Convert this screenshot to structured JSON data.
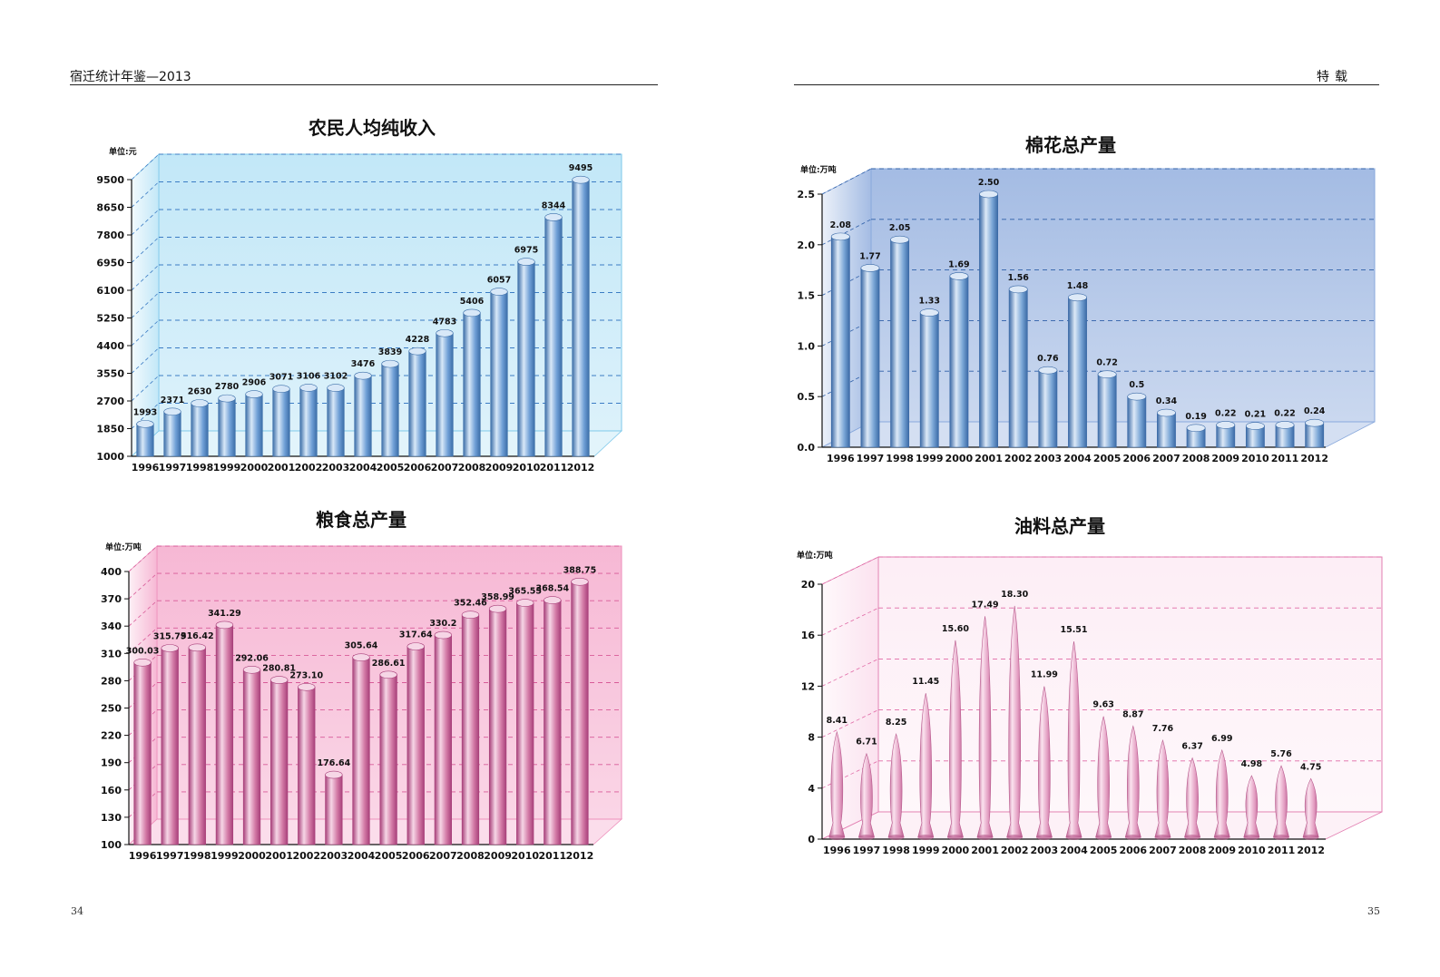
{
  "header": {
    "left_title": "宿迁统计年鉴—2013",
    "right_title": "特载"
  },
  "page_numbers": {
    "left": "34",
    "right": "35"
  },
  "chart_data": [
    {
      "type": "bar",
      "title": "农民人均纯收入",
      "unit": "单位:元",
      "categories": [
        "1996",
        "1997",
        "1998",
        "1999",
        "2000",
        "2001",
        "2002",
        "2003",
        "2004",
        "2005",
        "2006",
        "2007",
        "2008",
        "2009",
        "2010",
        "2011",
        "2012"
      ],
      "values": [
        1993,
        2371,
        2630,
        2780,
        2906,
        3071,
        3106,
        3102,
        3476,
        3839,
        4228,
        4783,
        5406,
        6057,
        6975,
        8344,
        9495
      ],
      "value_labels": [
        "1993",
        "2371",
        "2630",
        "2780",
        "2906",
        "3071",
        "3106",
        "3102",
        "3476",
        "3839",
        "4228",
        "4783",
        "5406",
        "6057",
        "6975",
        "8344",
        "9495"
      ],
      "yticks": [
        "1000",
        "1850",
        "2700",
        "3550",
        "4400",
        "5250",
        "6100",
        "6950",
        "7800",
        "8650",
        "9500"
      ],
      "ylim": [
        1000,
        9500
      ],
      "grid": true,
      "colors": {
        "bar": "#6f9fd6",
        "bar_light": "#d8e8f8",
        "bar_dark": "#3c6ea8",
        "panel": "#bfe6f7",
        "panel_edge": "#7ec8ea",
        "grid": "#3b7cc4"
      }
    },
    {
      "type": "bar",
      "title": "棉花总产量",
      "unit": "单位:万吨",
      "categories": [
        "1996",
        "1997",
        "1998",
        "1999",
        "2000",
        "2001",
        "2002",
        "2003",
        "2004",
        "2005",
        "2006",
        "2007",
        "2008",
        "2009",
        "2010",
        "2011",
        "2012"
      ],
      "values": [
        2.08,
        1.77,
        2.05,
        1.33,
        1.69,
        2.5,
        1.56,
        0.76,
        1.48,
        0.72,
        0.5,
        0.34,
        0.19,
        0.22,
        0.21,
        0.22,
        0.24
      ],
      "value_labels": [
        "2.08",
        "1.77",
        "2.05",
        "1.33",
        "1.69",
        "2.50",
        "1.56",
        "0.76",
        "1.48",
        "0.72",
        "0.5",
        "0.34",
        "0.19",
        "0.22",
        "0.21",
        "0.22",
        "0.24"
      ],
      "yticks": [
        "0.0",
        "0.5",
        "1.0",
        "1.5",
        "2.0",
        "2.5"
      ],
      "ylim": [
        0,
        2.5
      ],
      "grid": true,
      "colors": {
        "bar": "#7aa6d6",
        "bar_light": "#dde9f7",
        "bar_dark": "#3b6aa6",
        "panel": "#9fb8e2",
        "panel_edge": "#88a8dc",
        "grid": "#2e5fa8"
      }
    },
    {
      "type": "bar",
      "title": "粮食总产量",
      "unit": "单位:万吨",
      "categories": [
        "1996",
        "1997",
        "1998",
        "1999",
        "2000",
        "2001",
        "2002",
        "2003",
        "2004",
        "2005",
        "2006",
        "2007",
        "2008",
        "2009",
        "2010",
        "2011",
        "2012"
      ],
      "values": [
        300.03,
        315.79,
        316.42,
        341.29,
        292.06,
        280.81,
        273.1,
        176.64,
        305.64,
        286.61,
        317.64,
        330.2,
        352.46,
        358.99,
        365.55,
        368.54,
        388.75
      ],
      "value_labels": [
        "300.03",
        "315.79",
        "316.42",
        "341.29",
        "292.06",
        "280.81",
        "273.10",
        "176.64",
        "305.64",
        "286.61",
        "317.64",
        "330.2",
        "352.46",
        "358.99",
        "365.55",
        "368.54",
        "388.75"
      ],
      "yticks": [
        "100",
        "130",
        "160",
        "190",
        "220",
        "250",
        "280",
        "310",
        "340",
        "370",
        "400"
      ],
      "ylim": [
        100,
        400
      ],
      "grid": true,
      "colors": {
        "bar": "#d37aa6",
        "bar_light": "#f6d6e6",
        "bar_dark": "#a8407a",
        "panel": "#f6b4d2",
        "panel_edge": "#ee90bc",
        "grid": "#d85a98"
      }
    },
    {
      "type": "bar",
      "title": "油料总产量",
      "unit": "单位:万吨",
      "categories": [
        "1996",
        "1997",
        "1998",
        "1999",
        "2000",
        "2001",
        "2002",
        "2003",
        "2004",
        "2005",
        "2006",
        "2007",
        "2008",
        "2009",
        "2010",
        "2011",
        "2012"
      ],
      "values": [
        8.41,
        6.71,
        8.25,
        11.45,
        15.6,
        17.49,
        18.3,
        11.99,
        15.51,
        9.63,
        8.87,
        7.76,
        6.37,
        6.99,
        4.98,
        5.76,
        4.75
      ],
      "value_labels": [
        "8.41",
        "6.71",
        "8.25",
        "11.45",
        "15.60",
        "17.49",
        "18.30",
        "11.99",
        "15.51",
        "9.63",
        "8.87",
        "7.76",
        "6.37",
        "6.99",
        "4.98",
        "5.76",
        "4.75"
      ],
      "yticks": [
        "0",
        "4",
        "8",
        "12",
        "16",
        "20"
      ],
      "ylim": [
        0,
        20
      ],
      "grid": true,
      "colors": {
        "bar": "#e39ec2",
        "bar_light": "#fbe3ef",
        "bar_dark": "#b8588c",
        "panel": "#fbe0ee",
        "panel_edge": "#e27db0",
        "grid": "#e06aa6"
      }
    }
  ]
}
